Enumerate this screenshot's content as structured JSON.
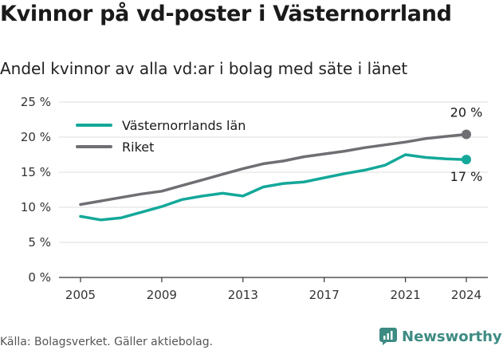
{
  "title": "Kvinnor på vd-poster i Västernorrland",
  "subtitle": "Andel kvinnor av alla vd:ar i bolag med säte i länet",
  "footer": "Källa: Bolagsverket. Gäller aktiebolag.",
  "brand": {
    "name": "Newsworthy",
    "icon": "newsworthy-logo-icon",
    "color": "#3d8b82"
  },
  "chart_data": {
    "type": "line",
    "x": [
      2005,
      2006,
      2007,
      2008,
      2009,
      2010,
      2011,
      2012,
      2013,
      2014,
      2015,
      2016,
      2017,
      2018,
      2019,
      2020,
      2021,
      2022,
      2023,
      2024
    ],
    "x_ticks": [
      "2005",
      "2009",
      "2013",
      "2017",
      "2021",
      "2024"
    ],
    "y_ticks": [
      "0 %",
      "5 %",
      "10 %",
      "15 %",
      "20 %",
      "25 %"
    ],
    "ylim": [
      0,
      25
    ],
    "grid": true,
    "legend_position": "top-left",
    "series": [
      {
        "name": "Västernorrlands län",
        "color": "#14a89a",
        "values": [
          8.7,
          8.2,
          8.5,
          9.3,
          10.1,
          11.1,
          11.6,
          12.0,
          11.6,
          12.9,
          13.4,
          13.6,
          14.2,
          14.8,
          15.3,
          16.0,
          17.5,
          17.1,
          16.9,
          16.8
        ],
        "end_label": "17 %"
      },
      {
        "name": "Riket",
        "color": "#6f6f73",
        "values": [
          10.4,
          10.9,
          11.4,
          11.9,
          12.3,
          13.1,
          13.9,
          14.7,
          15.5,
          16.2,
          16.6,
          17.2,
          17.6,
          18.0,
          18.5,
          18.9,
          19.3,
          19.8,
          20.1,
          20.4
        ],
        "end_label": "20 %"
      }
    ]
  }
}
